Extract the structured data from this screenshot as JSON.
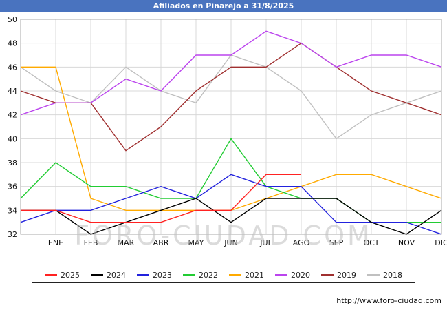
{
  "title": "Afiliados en Pinarejo a 31/8/2025",
  "watermark": "FORO-CIUDAD.COM",
  "footer_url": "http://www.foro-ciudad.com",
  "colors": {
    "title_bar_bg": "#4973bf",
    "title_text": "#ffffff",
    "grid": "#d8d8d8",
    "axis_text": "#111111",
    "plot_border": "#aaaaaa"
  },
  "chart_data": {
    "type": "line",
    "title": "Afiliados en Pinarejo a 31/8/2025",
    "xlabel": "",
    "ylabel": "",
    "ylim": [
      32,
      50
    ],
    "ytick_step": 2,
    "grid": true,
    "legend_position": "bottom",
    "categories": [
      "",
      "ENE",
      "FEB",
      "MAR",
      "ABR",
      "MAY",
      "JUN",
      "JUL",
      "AGO",
      "SEP",
      "OCT",
      "NOV",
      "DIC"
    ],
    "series": [
      {
        "name": "2025",
        "color": "#ff2222",
        "values": [
          34,
          34,
          33,
          33,
          33,
          34,
          34,
          37,
          37,
          null,
          null,
          null,
          null
        ]
      },
      {
        "name": "2024",
        "color": "#000000",
        "values": [
          34,
          34,
          32,
          33,
          34,
          35,
          33,
          35,
          35,
          35,
          33,
          32,
          34
        ]
      },
      {
        "name": "2023",
        "color": "#2222dd",
        "values": [
          33,
          34,
          34,
          35,
          36,
          35,
          37,
          36,
          36,
          33,
          33,
          33,
          32
        ]
      },
      {
        "name": "2022",
        "color": "#22cc33",
        "values": [
          35,
          38,
          36,
          36,
          35,
          35,
          40,
          36,
          35,
          35,
          33,
          33,
          33
        ]
      },
      {
        "name": "2021",
        "color": "#ffaa00",
        "values": [
          46,
          46,
          35,
          34,
          34,
          34,
          34,
          35,
          36,
          37,
          37,
          36,
          35
        ]
      },
      {
        "name": "2020",
        "color": "#bb44ee",
        "values": [
          42,
          43,
          43,
          45,
          44,
          47,
          47,
          49,
          48,
          46,
          47,
          47,
          46
        ]
      },
      {
        "name": "2019",
        "color": "#a03030",
        "values": [
          44,
          43,
          43,
          39,
          41,
          44,
          46,
          46,
          48,
          46,
          44,
          43,
          42
        ]
      },
      {
        "name": "2018",
        "color": "#c0c0c0",
        "values": [
          46,
          44,
          43,
          46,
          44,
          43,
          47,
          46,
          44,
          40,
          42,
          43,
          44
        ]
      }
    ]
  }
}
